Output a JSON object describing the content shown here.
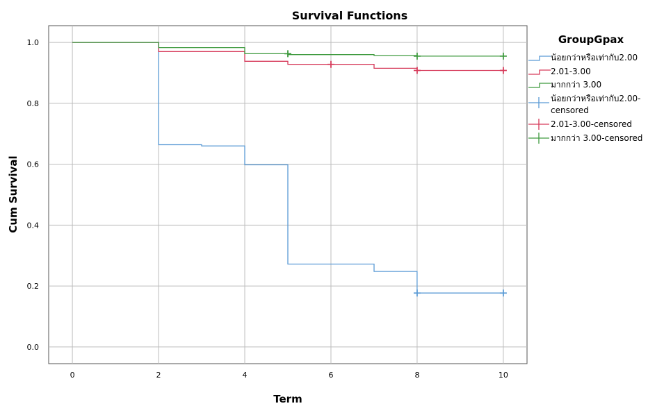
{
  "chart_data": {
    "type": "line",
    "step": true,
    "title": "Survival Functions",
    "xlabel": "Term",
    "ylabel": "Cum Survival",
    "xlim": [
      -0.55,
      10.55
    ],
    "ylim": [
      -0.055,
      1.055
    ],
    "x_ticks": [
      0,
      2,
      4,
      6,
      8,
      10
    ],
    "y_ticks": [
      0.0,
      0.2,
      0.4,
      0.6,
      0.8,
      1.0
    ],
    "x_tick_labels": [
      "0",
      "2",
      "4",
      "6",
      "8",
      "10"
    ],
    "y_tick_labels": [
      "0.0",
      "0.2",
      "0.4",
      "0.6",
      "0.8",
      "1.0"
    ],
    "grid": true,
    "legend_position": "right",
    "legend_title": "GroupGpax",
    "legend": [
      {
        "label": "น้อยกว่าหรือเท่ากับ2.00",
        "marker": "line",
        "color": "#5b9bd5"
      },
      {
        "label": "2.01-3.00",
        "marker": "line",
        "color": "#d63a5a"
      },
      {
        "label": "มากกว่า 3.00",
        "marker": "line",
        "color": "#3f9a3f"
      },
      {
        "label": "น้อยกว่าหรือเท่ากับ2.00-censored",
        "marker": "plus",
        "color": "#5b9bd5"
      },
      {
        "label": "2.01-3.00-censored",
        "marker": "plus",
        "color": "#d63a5a"
      },
      {
        "label": "มากกว่า 3.00-censored",
        "marker": "plus",
        "color": "#3f9a3f"
      }
    ],
    "series": [
      {
        "color": "#5b9bd5",
        "points": [
          [
            0,
            1.0
          ],
          [
            1,
            1.0
          ],
          [
            2,
            1.0
          ],
          [
            2,
            0.664
          ],
          [
            3,
            0.664
          ],
          [
            3,
            0.66
          ],
          [
            4,
            0.66
          ],
          [
            4,
            0.598
          ],
          [
            5,
            0.598
          ],
          [
            5,
            0.272
          ],
          [
            7,
            0.272
          ],
          [
            7,
            0.248
          ],
          [
            8,
            0.248
          ],
          [
            8,
            0.177
          ],
          [
            10,
            0.177
          ]
        ],
        "censored": [
          [
            8,
            0.177
          ],
          [
            10,
            0.177
          ]
        ]
      },
      {
        "color": "#d63a5a",
        "points": [
          [
            0,
            1.0
          ],
          [
            2,
            1.0
          ],
          [
            2,
            0.97
          ],
          [
            4,
            0.97
          ],
          [
            4,
            0.938
          ],
          [
            5,
            0.938
          ],
          [
            5,
            0.928
          ],
          [
            7,
            0.928
          ],
          [
            7,
            0.915
          ],
          [
            8,
            0.915
          ],
          [
            8,
            0.908
          ],
          [
            10,
            0.908
          ]
        ],
        "censored": [
          [
            6,
            0.928
          ],
          [
            8,
            0.908
          ],
          [
            10,
            0.908
          ]
        ]
      },
      {
        "color": "#3f9a3f",
        "points": [
          [
            0,
            1.0
          ],
          [
            2,
            1.0
          ],
          [
            2,
            0.983
          ],
          [
            4,
            0.983
          ],
          [
            4,
            0.963
          ],
          [
            5,
            0.963
          ],
          [
            5,
            0.96
          ],
          [
            7,
            0.96
          ],
          [
            7,
            0.957
          ],
          [
            8,
            0.957
          ],
          [
            8,
            0.955
          ],
          [
            10,
            0.955
          ]
        ],
        "censored": [
          [
            5,
            0.963
          ],
          [
            8,
            0.955
          ],
          [
            10,
            0.955
          ]
        ]
      }
    ]
  }
}
